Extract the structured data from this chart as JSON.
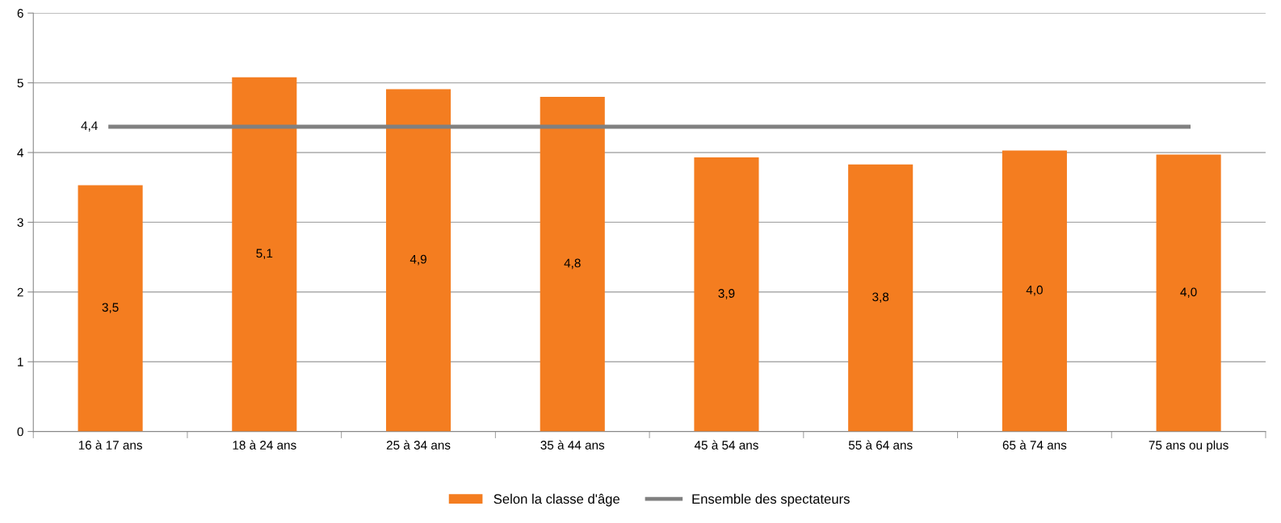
{
  "chart_data": {
    "type": "bar",
    "categories": [
      "16 à 17 ans",
      "18 à 24 ans",
      "25 à 34 ans",
      "35 à 44 ans",
      "45 à 54 ans",
      "55 à 64 ans",
      "65 à 74 ans",
      "75 ans ou plus"
    ],
    "series": [
      {
        "name": "Selon la classe d'âge",
        "color": "#f47d20",
        "values": [
          3.53,
          5.08,
          4.91,
          4.8,
          3.93,
          3.83,
          4.03,
          3.97
        ],
        "value_labels": [
          "3,5",
          "5,1",
          "4,9",
          "4,8",
          "3,9",
          "3,8",
          "4,0",
          "4,0"
        ]
      },
      {
        "name": "Ensemble des spectateurs",
        "type": "line",
        "color": "#808080",
        "values": [
          4.37,
          4.37,
          4.37,
          4.37,
          4.37,
          4.37,
          4.37,
          4.37
        ],
        "value_labels": [
          "4,4",
          null,
          null,
          null,
          null,
          null,
          null,
          null
        ]
      }
    ],
    "ylim": [
      0,
      6
    ],
    "yticks": [
      0,
      1,
      2,
      3,
      4,
      5,
      6
    ],
    "grid": "y",
    "legend": "bottom",
    "marker": "none",
    "line_style": "solid"
  }
}
